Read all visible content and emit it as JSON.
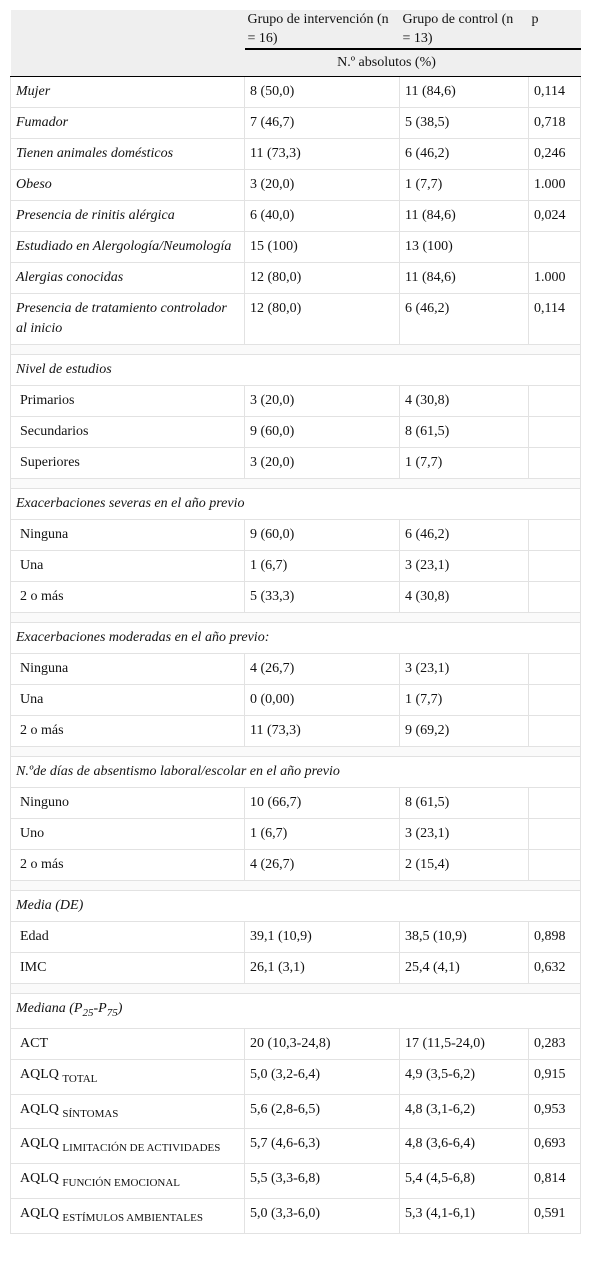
{
  "table": {
    "header": {
      "col1": "Grupo de intervención (n = 16)",
      "col2": "Grupo de control (n = 13)",
      "col3": "p",
      "subheader": "N.º absolutos (%)"
    },
    "rows": [
      [
        "Mujer",
        "8 (50,0)",
        "11 (84,6)",
        "0,114"
      ],
      [
        "Fumador",
        "7 (46,7)",
        "5 (38,5)",
        "0,718"
      ],
      [
        "Tienen animales domésticos",
        "11 (73,3)",
        "6 (46,2)",
        "0,246"
      ],
      [
        "Obeso",
        "3 (20,0)",
        "1 (7,7)",
        "1.000"
      ],
      [
        "Presencia de rinitis alérgica",
        "6 (40,0)",
        "11 (84,6)",
        "0,024"
      ],
      [
        "Estudiado en Alergología/Neumología",
        "15 (100)",
        "13 (100)"
      ],
      [
        "Alergias conocidas",
        "12 (80,0)",
        "11 (84,6)",
        "1.000"
      ],
      [
        "Presencia de tratamiento controlador al inicio",
        "12 (80,0)",
        "6 (46,2)",
        "0,114"
      ]
    ],
    "sections": [
      {
        "title": [
          {
            "text": "Nivel de estudios"
          }
        ],
        "rows": [
          [
            "Primarios",
            "3 (20,0)",
            "4 (30,8)"
          ],
          [
            "Secundarios",
            "9 (60,0)",
            "8 (61,5)"
          ],
          [
            "Superiores",
            "3 (20,0)",
            "1 (7,7)"
          ]
        ]
      },
      {
        "title": [
          {
            "text": "Exacerbaciones severas en el año previo"
          }
        ],
        "rows": [
          [
            "Ninguna",
            "9 (60,0)",
            "6 (46,2)"
          ],
          [
            "Una",
            "1 (6,7)",
            "3 (23,1)"
          ],
          [
            "2 o más",
            "5 (33,3)",
            "4 (30,8)"
          ]
        ]
      },
      {
        "title": [
          {
            "text": "Exacerbaciones moderadas en el año previo:"
          }
        ],
        "rows": [
          [
            "Ninguna",
            "4 (26,7)",
            "3 (23,1)"
          ],
          [
            "Una",
            "0 (0,00)",
            "1 (7,7)"
          ],
          [
            "2 o más",
            "11 (73,3)",
            "9 (69,2)"
          ]
        ]
      },
      {
        "title": [
          {
            "text": "N.ºde días de absentismo laboral/escolar en el año previo"
          }
        ],
        "rows": [
          [
            "Ninguno",
            "10 (66,7)",
            "8 (61,5)"
          ],
          [
            "Uno",
            "1 (6,7)",
            "3 (23,1)"
          ],
          [
            "2 o más",
            "4 (26,7)",
            "2 (15,4)"
          ]
        ]
      },
      {
        "title": [
          {
            "text": "Media (DE)"
          }
        ],
        "rows": [
          [
            "Edad",
            "39,1 (10,9)",
            "38,5 (10,9)",
            "0,898"
          ],
          [
            "IMC",
            "26,1 (3,1)",
            "25,4 (4,1)",
            "0,632"
          ]
        ]
      },
      {
        "title": [
          {
            "text": "Mediana (P"
          },
          {
            "sub": "25"
          },
          {
            "text": "-P"
          },
          {
            "sub": "75"
          },
          {
            "text": ")"
          }
        ],
        "rows": [
          [
            "ACT",
            "20 (10,3-24,8)",
            "17 (11,5-24,0)",
            "0,283"
          ],
          [
            {
              "text": "AQLQ",
              "sub": "TOTAL"
            },
            "5,0 (3,2-6,4)",
            "4,9 (3,5-6,2)",
            "0,915"
          ],
          [
            {
              "text": "AQLQ",
              "sub": "SÍNTOMAS"
            },
            "5,6 (2,8-6,5)",
            "4,8 (3,1-6,2)",
            "0,953"
          ],
          [
            {
              "text": "AQLQ",
              "sub": "LIMITACIÓN DE ACTIVIDADES"
            },
            "5,7 (4,6-6,3)",
            "4,8 (3,6-6,4)",
            "0,693"
          ],
          [
            {
              "text": "AQLQ",
              "sub": "FUNCIÓN EMOCIONAL"
            },
            "5,5 (3,3-6,8)",
            "5,4 (4,5-6,8)",
            "0,814"
          ],
          [
            {
              "text": "AQLQ",
              "sub": "ESTÍMULOS AMBIENTALES"
            },
            "5,0 (3,3-6,0)",
            "5,3 (4,1-6,1)",
            "0,591"
          ]
        ]
      }
    ]
  }
}
